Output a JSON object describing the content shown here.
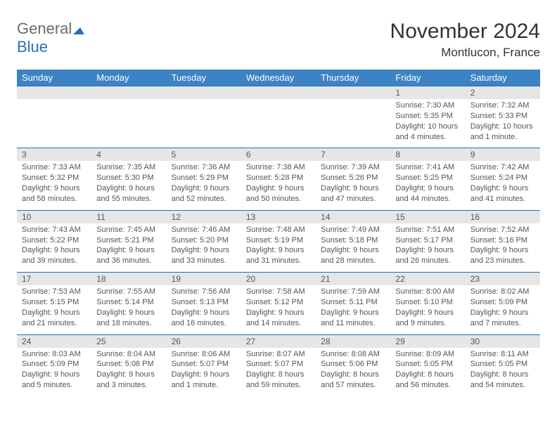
{
  "logo": {
    "text_gray": "General",
    "text_blue": "Blue"
  },
  "title": "November 2024",
  "location": "Montlucon, France",
  "colors": {
    "header_band": "#3b83c4",
    "daynum_band": "#e6e6e6",
    "rule": "#2a6fb5",
    "text_body": "#555555",
    "text_title": "#333333"
  },
  "day_names": [
    "Sunday",
    "Monday",
    "Tuesday",
    "Wednesday",
    "Thursday",
    "Friday",
    "Saturday"
  ],
  "weeks": [
    {
      "nums": [
        "",
        "",
        "",
        "",
        "",
        "1",
        "2"
      ],
      "details": [
        null,
        null,
        null,
        null,
        null,
        {
          "sunrise": "7:30 AM",
          "sunset": "5:35 PM",
          "daylight": "10 hours and 4 minutes."
        },
        {
          "sunrise": "7:32 AM",
          "sunset": "5:33 PM",
          "daylight": "10 hours and 1 minute."
        }
      ]
    },
    {
      "nums": [
        "3",
        "4",
        "5",
        "6",
        "7",
        "8",
        "9"
      ],
      "details": [
        {
          "sunrise": "7:33 AM",
          "sunset": "5:32 PM",
          "daylight": "9 hours and 58 minutes."
        },
        {
          "sunrise": "7:35 AM",
          "sunset": "5:30 PM",
          "daylight": "9 hours and 55 minutes."
        },
        {
          "sunrise": "7:36 AM",
          "sunset": "5:29 PM",
          "daylight": "9 hours and 52 minutes."
        },
        {
          "sunrise": "7:38 AM",
          "sunset": "5:28 PM",
          "daylight": "9 hours and 50 minutes."
        },
        {
          "sunrise": "7:39 AM",
          "sunset": "5:26 PM",
          "daylight": "9 hours and 47 minutes."
        },
        {
          "sunrise": "7:41 AM",
          "sunset": "5:25 PM",
          "daylight": "9 hours and 44 minutes."
        },
        {
          "sunrise": "7:42 AM",
          "sunset": "5:24 PM",
          "daylight": "9 hours and 41 minutes."
        }
      ]
    },
    {
      "nums": [
        "10",
        "11",
        "12",
        "13",
        "14",
        "15",
        "16"
      ],
      "details": [
        {
          "sunrise": "7:43 AM",
          "sunset": "5:22 PM",
          "daylight": "9 hours and 39 minutes."
        },
        {
          "sunrise": "7:45 AM",
          "sunset": "5:21 PM",
          "daylight": "9 hours and 36 minutes."
        },
        {
          "sunrise": "7:46 AM",
          "sunset": "5:20 PM",
          "daylight": "9 hours and 33 minutes."
        },
        {
          "sunrise": "7:48 AM",
          "sunset": "5:19 PM",
          "daylight": "9 hours and 31 minutes."
        },
        {
          "sunrise": "7:49 AM",
          "sunset": "5:18 PM",
          "daylight": "9 hours and 28 minutes."
        },
        {
          "sunrise": "7:51 AM",
          "sunset": "5:17 PM",
          "daylight": "9 hours and 26 minutes."
        },
        {
          "sunrise": "7:52 AM",
          "sunset": "5:16 PM",
          "daylight": "9 hours and 23 minutes."
        }
      ]
    },
    {
      "nums": [
        "17",
        "18",
        "19",
        "20",
        "21",
        "22",
        "23"
      ],
      "details": [
        {
          "sunrise": "7:53 AM",
          "sunset": "5:15 PM",
          "daylight": "9 hours and 21 minutes."
        },
        {
          "sunrise": "7:55 AM",
          "sunset": "5:14 PM",
          "daylight": "9 hours and 18 minutes."
        },
        {
          "sunrise": "7:56 AM",
          "sunset": "5:13 PM",
          "daylight": "9 hours and 16 minutes."
        },
        {
          "sunrise": "7:58 AM",
          "sunset": "5:12 PM",
          "daylight": "9 hours and 14 minutes."
        },
        {
          "sunrise": "7:59 AM",
          "sunset": "5:11 PM",
          "daylight": "9 hours and 11 minutes."
        },
        {
          "sunrise": "8:00 AM",
          "sunset": "5:10 PM",
          "daylight": "9 hours and 9 minutes."
        },
        {
          "sunrise": "8:02 AM",
          "sunset": "5:09 PM",
          "daylight": "9 hours and 7 minutes."
        }
      ]
    },
    {
      "nums": [
        "24",
        "25",
        "26",
        "27",
        "28",
        "29",
        "30"
      ],
      "details": [
        {
          "sunrise": "8:03 AM",
          "sunset": "5:09 PM",
          "daylight": "9 hours and 5 minutes."
        },
        {
          "sunrise": "8:04 AM",
          "sunset": "5:08 PM",
          "daylight": "9 hours and 3 minutes."
        },
        {
          "sunrise": "8:06 AM",
          "sunset": "5:07 PM",
          "daylight": "9 hours and 1 minute."
        },
        {
          "sunrise": "8:07 AM",
          "sunset": "5:07 PM",
          "daylight": "8 hours and 59 minutes."
        },
        {
          "sunrise": "8:08 AM",
          "sunset": "5:06 PM",
          "daylight": "8 hours and 57 minutes."
        },
        {
          "sunrise": "8:09 AM",
          "sunset": "5:05 PM",
          "daylight": "8 hours and 56 minutes."
        },
        {
          "sunrise": "8:11 AM",
          "sunset": "5:05 PM",
          "daylight": "8 hours and 54 minutes."
        }
      ]
    }
  ],
  "labels": {
    "sunrise": "Sunrise:",
    "sunset": "Sunset:",
    "daylight": "Daylight:"
  }
}
